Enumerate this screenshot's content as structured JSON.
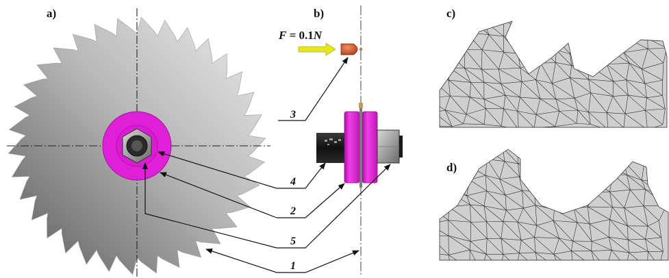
{
  "panels": {
    "a": "a)",
    "b": "b)",
    "c": "c)",
    "d": "d)"
  },
  "force_label": {
    "var": "F",
    "eq": " = ",
    "value": "0.1",
    "unit": "N"
  },
  "callouts": {
    "c1": "1",
    "c2": "2",
    "c3": "3",
    "c4": "4",
    "c5": "5"
  },
  "colors": {
    "flange": "#e020d8",
    "arrow": "#e6e61e",
    "tip": "#d0552a",
    "mesh_fill": "#cfcfcf",
    "saw_light": "#e6e6e6",
    "saw_dark": "#5a5a5a"
  }
}
